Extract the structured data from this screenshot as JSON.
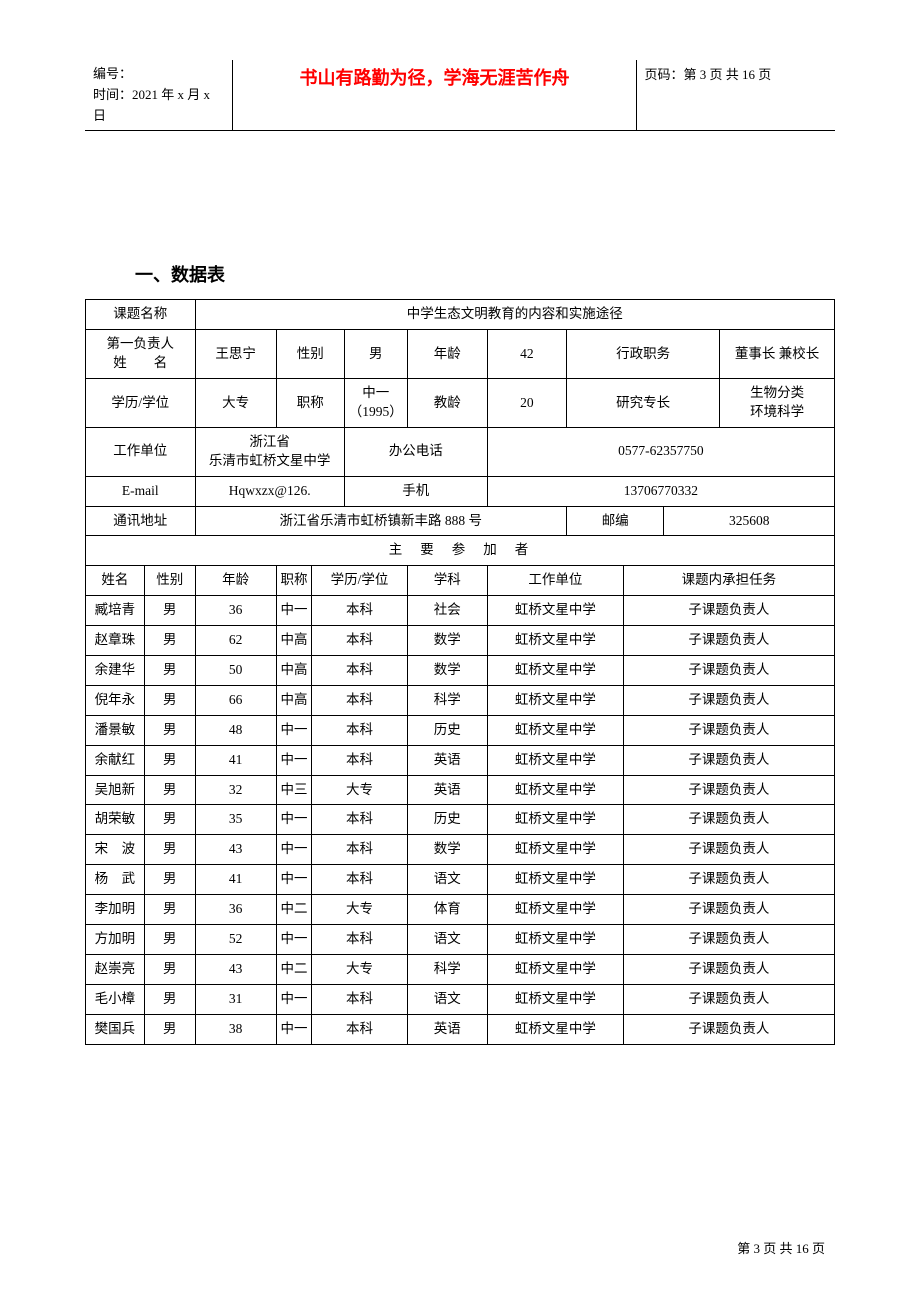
{
  "header": {
    "serial_label": "编号：",
    "date_label": "时间：",
    "date_value": "2021 年 x 月 x 日",
    "motto": "书山有路勤为径，学海无涯苦作舟",
    "page_label": "页码：",
    "page_value": "第 3 页 共 16 页"
  },
  "section_title": "一、数据表",
  "info": {
    "project_name_label": "课题名称",
    "project_name": "中学生态文明教育的内容和实施途径",
    "principal_label": "第一负责人姓　　名",
    "principal_name": "王思宁",
    "gender_label": "性别",
    "gender": "男",
    "age_label": "年龄",
    "age": "42",
    "admin_post_label": "行政职务",
    "admin_post": "董事长 兼校长",
    "edu_label": "学历/学位",
    "edu": "大专",
    "title_label": "职称",
    "title": "中一（1995）",
    "teach_age_label": "教龄",
    "teach_age": "20",
    "specialty_label": "研究专长",
    "specialty": "生物分类环境科学",
    "work_unit_label": "工作单位",
    "work_unit": "浙江省乐清市虹桥文星中学",
    "office_tel_label": "办公电话",
    "office_tel": "0577-62357750",
    "email_label": "E-mail",
    "email": "Hqwxzx@126.",
    "mobile_label": "手机",
    "mobile": "13706770332",
    "address_label": "通讯地址",
    "address": "浙江省乐清市虹桥镇新丰路 888 号",
    "postcode_label": "邮编",
    "postcode": "325608",
    "participants_header": "主要参加者"
  },
  "participant_columns": {
    "name": "姓名",
    "gender": "性别",
    "age": "年龄",
    "title": "职称",
    "edu": "学历/学位",
    "subject": "学科",
    "work_unit": "工作单位",
    "task": "课题内承担任务"
  },
  "participants": [
    {
      "name": "臧培青",
      "gender": "男",
      "age": "36",
      "title": "中一",
      "edu": "本科",
      "subject": "社会",
      "work_unit": "虹桥文星中学",
      "task": "子课题负责人"
    },
    {
      "name": "赵章珠",
      "gender": "男",
      "age": "62",
      "title": "中高",
      "edu": "本科",
      "subject": "数学",
      "work_unit": "虹桥文星中学",
      "task": "子课题负责人"
    },
    {
      "name": "余建华",
      "gender": "男",
      "age": "50",
      "title": "中高",
      "edu": "本科",
      "subject": "数学",
      "work_unit": "虹桥文星中学",
      "task": "子课题负责人"
    },
    {
      "name": "倪年永",
      "gender": "男",
      "age": "66",
      "title": "中高",
      "edu": "本科",
      "subject": "科学",
      "work_unit": "虹桥文星中学",
      "task": "子课题负责人"
    },
    {
      "name": "潘景敏",
      "gender": "男",
      "age": "48",
      "title": "中一",
      "edu": "本科",
      "subject": "历史",
      "work_unit": "虹桥文星中学",
      "task": "子课题负责人"
    },
    {
      "name": "余献红",
      "gender": "男",
      "age": "41",
      "title": "中一",
      "edu": "本科",
      "subject": "英语",
      "work_unit": "虹桥文星中学",
      "task": "子课题负责人"
    },
    {
      "name": "吴旭新",
      "gender": "男",
      "age": "32",
      "title": "中三",
      "edu": "大专",
      "subject": "英语",
      "work_unit": "虹桥文星中学",
      "task": "子课题负责人"
    },
    {
      "name": "胡荣敏",
      "gender": "男",
      "age": "35",
      "title": "中一",
      "edu": "本科",
      "subject": "历史",
      "work_unit": "虹桥文星中学",
      "task": "子课题负责人"
    },
    {
      "name": "宋　波",
      "gender": "男",
      "age": "43",
      "title": "中一",
      "edu": "本科",
      "subject": "数学",
      "work_unit": "虹桥文星中学",
      "task": "子课题负责人"
    },
    {
      "name": "杨　武",
      "gender": "男",
      "age": "41",
      "title": "中一",
      "edu": "本科",
      "subject": "语文",
      "work_unit": "虹桥文星中学",
      "task": "子课题负责人"
    },
    {
      "name": "李加明",
      "gender": "男",
      "age": "36",
      "title": "中二",
      "edu": "大专",
      "subject": "体育",
      "work_unit": "虹桥文星中学",
      "task": "子课题负责人"
    },
    {
      "name": "方加明",
      "gender": "男",
      "age": "52",
      "title": "中一",
      "edu": "本科",
      "subject": "语文",
      "work_unit": "虹桥文星中学",
      "task": "子课题负责人"
    },
    {
      "name": "赵崇亮",
      "gender": "男",
      "age": "43",
      "title": "中二",
      "edu": "大专",
      "subject": "科学",
      "work_unit": "虹桥文星中学",
      "task": "子课题负责人"
    },
    {
      "name": "毛小樟",
      "gender": "男",
      "age": "31",
      "title": "中一",
      "edu": "本科",
      "subject": "语文",
      "work_unit": "虹桥文星中学",
      "task": "子课题负责人"
    },
    {
      "name": "樊国兵",
      "gender": "男",
      "age": "38",
      "title": "中一",
      "edu": "本科",
      "subject": "英语",
      "work_unit": "虹桥文星中学",
      "task": "子课题负责人"
    }
  ],
  "footer": {
    "page_text": "第 3 页 共 16 页"
  }
}
